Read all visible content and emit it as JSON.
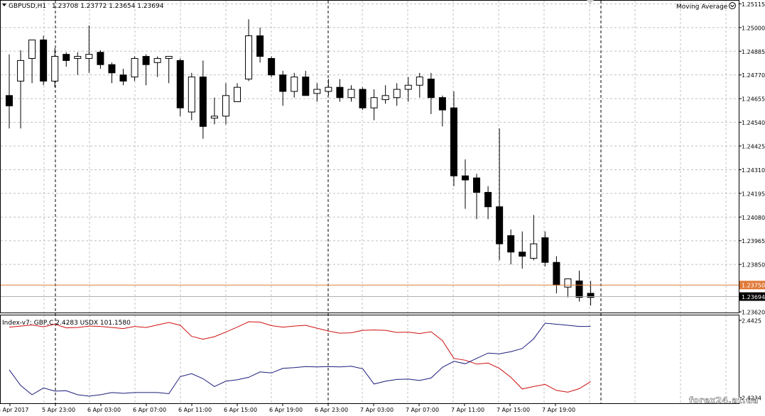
{
  "header": {
    "symbol": "GBPUSD,H1",
    "ohlc": "1.23708 1.23772 1.23654 1.23694",
    "indicator_label": "Moving Average"
  },
  "sub_header": {
    "label": "Index-v7: GBP,C 2.4283  USDX  101.1580"
  },
  "watermark": "forex24.at.ua",
  "colors": {
    "grid": "#c0c0c0",
    "bid_line": "#e07a3a",
    "ask_line": "#000000",
    "gbp_line": "#d01010",
    "usdx_line": "#1c1c7c",
    "candle": "#000000"
  },
  "price_axis_labels": [
    "1.25115",
    "1.25000",
    "1.24885",
    "1.24770",
    "1.24655",
    "1.24540",
    "1.24425",
    "1.24310",
    "1.24195",
    "1.24080",
    "1.23965",
    "1.23850",
    "1.23620"
  ],
  "price_tags": {
    "bid": "1.23750",
    "last": "1.23694"
  },
  "sub_axis_labels": [
    "2.4425",
    "2.4234"
  ],
  "time_labels": [
    "5 Apr 2017",
    "5 Apr 23:00",
    "6 Apr 03:00",
    "6 Apr 07:00",
    "6 Apr 11:00",
    "6 Apr 15:00",
    "6 Apr 19:00",
    "6 Apr 23:00",
    "7 Apr 03:00",
    "7 Apr 07:00",
    "7 Apr 11:00",
    "7 Apr 15:00",
    "7 Apr 19:00"
  ],
  "chart_data": {
    "type": "candlestick",
    "symbol": "GBPUSD",
    "timeframe": "H1",
    "ylim": [
      1.2362,
      1.2512
    ],
    "bid": 1.2375,
    "candles": [
      {
        "o": 1.2467,
        "h": 1.2487,
        "l": 1.2451,
        "c": 1.2462
      },
      {
        "o": 1.2474,
        "h": 1.2489,
        "l": 1.2451,
        "c": 1.2484
      },
      {
        "o": 1.2485,
        "h": 1.2494,
        "l": 1.2473,
        "c": 1.2494
      },
      {
        "o": 1.2494,
        "h": 1.2496,
        "l": 1.2472,
        "c": 1.2474
      },
      {
        "o": 1.2474,
        "h": 1.249,
        "l": 1.2471,
        "c": 1.2486
      },
      {
        "o": 1.2487,
        "h": 1.2488,
        "l": 1.2481,
        "c": 1.2484
      },
      {
        "o": 1.2485,
        "h": 1.2488,
        "l": 1.2477,
        "c": 1.2486
      },
      {
        "o": 1.2485,
        "h": 1.2501,
        "l": 1.2478,
        "c": 1.2487
      },
      {
        "o": 1.2488,
        "h": 1.2489,
        "l": 1.248,
        "c": 1.2482
      },
      {
        "o": 1.2482,
        "h": 1.2483,
        "l": 1.2473,
        "c": 1.2478
      },
      {
        "o": 1.2477,
        "h": 1.248,
        "l": 1.2472,
        "c": 1.2474
      },
      {
        "o": 1.2476,
        "h": 1.2486,
        "l": 1.2474,
        "c": 1.2485
      },
      {
        "o": 1.2486,
        "h": 1.2487,
        "l": 1.2472,
        "c": 1.2482
      },
      {
        "o": 1.2483,
        "h": 1.2486,
        "l": 1.2476,
        "c": 1.2485
      },
      {
        "o": 1.2485,
        "h": 1.2486,
        "l": 1.2473,
        "c": 1.2486
      },
      {
        "o": 1.2484,
        "h": 1.2485,
        "l": 1.2457,
        "c": 1.2461
      },
      {
        "o": 1.2459,
        "h": 1.2478,
        "l": 1.2455,
        "c": 1.2476
      },
      {
        "o": 1.2476,
        "h": 1.2484,
        "l": 1.2446,
        "c": 1.2452
      },
      {
        "o": 1.2456,
        "h": 1.2466,
        "l": 1.2453,
        "c": 1.2457
      },
      {
        "o": 1.2457,
        "h": 1.2473,
        "l": 1.2453,
        "c": 1.2467
      },
      {
        "o": 1.2464,
        "h": 1.2473,
        "l": 1.2464,
        "c": 1.2471
      },
      {
        "o": 1.2475,
        "h": 1.2504,
        "l": 1.2474,
        "c": 1.2496
      },
      {
        "o": 1.2496,
        "h": 1.25,
        "l": 1.2483,
        "c": 1.2486
      },
      {
        "o": 1.2485,
        "h": 1.2486,
        "l": 1.2476,
        "c": 1.2477
      },
      {
        "o": 1.2477,
        "h": 1.2479,
        "l": 1.2462,
        "c": 1.2469
      },
      {
        "o": 1.2469,
        "h": 1.2478,
        "l": 1.2466,
        "c": 1.2476
      },
      {
        "o": 1.2476,
        "h": 1.2479,
        "l": 1.2467,
        "c": 1.2467
      },
      {
        "o": 1.2468,
        "h": 1.2473,
        "l": 1.2464,
        "c": 1.247
      },
      {
        "o": 1.2469,
        "h": 1.2475,
        "l": 1.2467,
        "c": 1.2471
      },
      {
        "o": 1.2471,
        "h": 1.2475,
        "l": 1.2464,
        "c": 1.2466
      },
      {
        "o": 1.2466,
        "h": 1.2472,
        "l": 1.2464,
        "c": 1.247
      },
      {
        "o": 1.247,
        "h": 1.2471,
        "l": 1.246,
        "c": 1.2461
      },
      {
        "o": 1.2461,
        "h": 1.247,
        "l": 1.2455,
        "c": 1.2466
      },
      {
        "o": 1.2465,
        "h": 1.2472,
        "l": 1.2463,
        "c": 1.2467
      },
      {
        "o": 1.2466,
        "h": 1.2473,
        "l": 1.2462,
        "c": 1.247
      },
      {
        "o": 1.247,
        "h": 1.2476,
        "l": 1.2464,
        "c": 1.2472
      },
      {
        "o": 1.2472,
        "h": 1.2478,
        "l": 1.2466,
        "c": 1.2476
      },
      {
        "o": 1.2475,
        "h": 1.2478,
        "l": 1.2458,
        "c": 1.2466
      },
      {
        "o": 1.2466,
        "h": 1.2467,
        "l": 1.2452,
        "c": 1.246
      },
      {
        "o": 1.2461,
        "h": 1.2469,
        "l": 1.2423,
        "c": 1.2428
      },
      {
        "o": 1.2428,
        "h": 1.2436,
        "l": 1.2412,
        "c": 1.2426
      },
      {
        "o": 1.2427,
        "h": 1.2429,
        "l": 1.2407,
        "c": 1.242
      },
      {
        "o": 1.242,
        "h": 1.2423,
        "l": 1.2407,
        "c": 1.2413
      },
      {
        "o": 1.2413,
        "h": 1.2451,
        "l": 1.2387,
        "c": 1.2395
      },
      {
        "o": 1.2399,
        "h": 1.2402,
        "l": 1.2385,
        "c": 1.2391
      },
      {
        "o": 1.2391,
        "h": 1.2401,
        "l": 1.2383,
        "c": 1.2389
      },
      {
        "o": 1.2388,
        "h": 1.2409,
        "l": 1.2387,
        "c": 1.2395
      },
      {
        "o": 1.2398,
        "h": 1.2401,
        "l": 1.2384,
        "c": 1.2386
      },
      {
        "o": 1.2386,
        "h": 1.2389,
        "l": 1.2371,
        "c": 1.2375
      },
      {
        "o": 1.2374,
        "h": 1.2378,
        "l": 1.2369,
        "c": 1.2378
      },
      {
        "o": 1.2377,
        "h": 1.2382,
        "l": 1.2367,
        "c": 1.2369
      },
      {
        "o": 1.2371,
        "h": 1.2377,
        "l": 1.2365,
        "c": 1.2369
      }
    ],
    "indicator": {
      "name": "Index-v7",
      "ylim": [
        2.421,
        2.4445
      ],
      "series": [
        {
          "name": "GBP",
          "values": [
            2.4418,
            2.4421,
            2.4424,
            2.4419,
            2.4426,
            2.4416,
            2.4417,
            2.4421,
            2.442,
            2.4417,
            2.4414,
            2.442,
            2.4417,
            2.4424,
            2.4431,
            2.4423,
            2.4392,
            2.4384,
            2.4391,
            2.4404,
            2.4418,
            2.4433,
            2.4432,
            2.4422,
            2.4418,
            2.4421,
            2.4423,
            2.4415,
            2.4407,
            2.4401,
            2.4402,
            2.4409,
            2.441,
            2.4409,
            2.4403,
            2.4404,
            2.44,
            2.4405,
            2.438,
            2.433,
            2.4325,
            2.4314,
            2.4317,
            2.4302,
            2.4277,
            2.4244,
            2.4251,
            2.4257,
            2.424,
            2.4235,
            2.4245,
            2.4265
          ]
        },
        {
          "name": "USDX",
          "values": [
            2.4298,
            2.4254,
            2.4228,
            2.4247,
            2.4238,
            2.4239,
            2.4228,
            2.4224,
            2.4228,
            2.4234,
            2.4232,
            2.4234,
            2.4234,
            2.4234,
            2.4231,
            2.4279,
            2.4287,
            2.4273,
            2.4251,
            2.4266,
            2.427,
            2.4277,
            2.4292,
            2.4289,
            2.4302,
            2.4304,
            2.4307,
            2.4306,
            2.4307,
            2.4306,
            2.4308,
            2.4301,
            2.4258,
            2.4266,
            2.4271,
            2.4272,
            2.4268,
            2.4275,
            2.4305,
            2.4322,
            2.4315,
            2.433,
            2.4345,
            2.4343,
            2.4349,
            2.4358,
            2.4385,
            2.4429,
            2.4426,
            2.4423,
            2.442,
            2.442
          ]
        }
      ]
    }
  }
}
